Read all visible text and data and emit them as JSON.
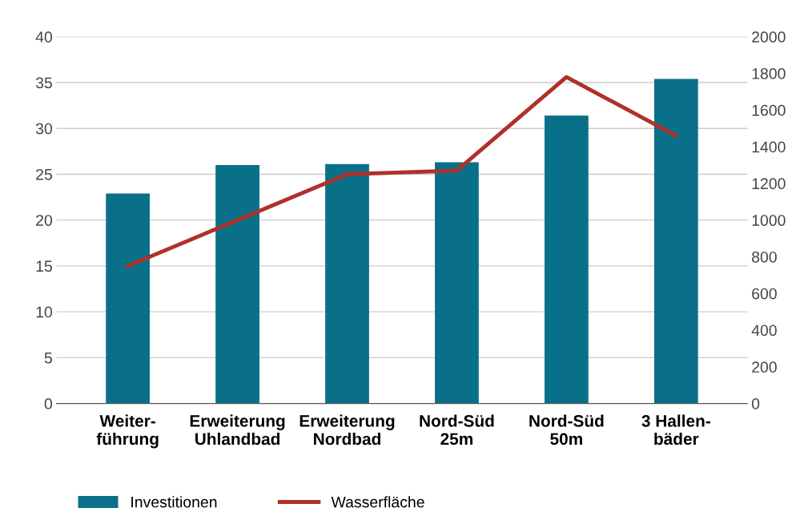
{
  "chart_data": {
    "type": "bar",
    "categories": [
      "Weiter-\nführung",
      "Erweiterung\nUhlandbad",
      "Erweiterung\nNordbad",
      "Nord-Süd\n25m",
      "Nord-Süd\n50m",
      "3 Hallen-\nbäder"
    ],
    "series": [
      {
        "name": "Investitionen",
        "color": "#0a7089",
        "values": [
          22.9,
          26,
          26.1,
          26.3,
          31.4,
          35.4
        ]
      },
      {
        "name": "Wasserfläche",
        "type": "line",
        "axis": "y2",
        "color": "#b0302a",
        "values": [
          750,
          1000,
          1250,
          1270,
          1780,
          1460
        ]
      }
    ],
    "ylim": [
      0,
      40
    ],
    "yticks": [
      0,
      5,
      10,
      15,
      20,
      25,
      30,
      35,
      40
    ],
    "y2lim": [
      0,
      2000
    ],
    "y2ticks": [
      0,
      200,
      400,
      600,
      800,
      1000,
      1200,
      1400,
      1600,
      1800,
      2000
    ],
    "grid": "y",
    "legend": "bottom left",
    "marker": "none",
    "line_style": "solid"
  }
}
